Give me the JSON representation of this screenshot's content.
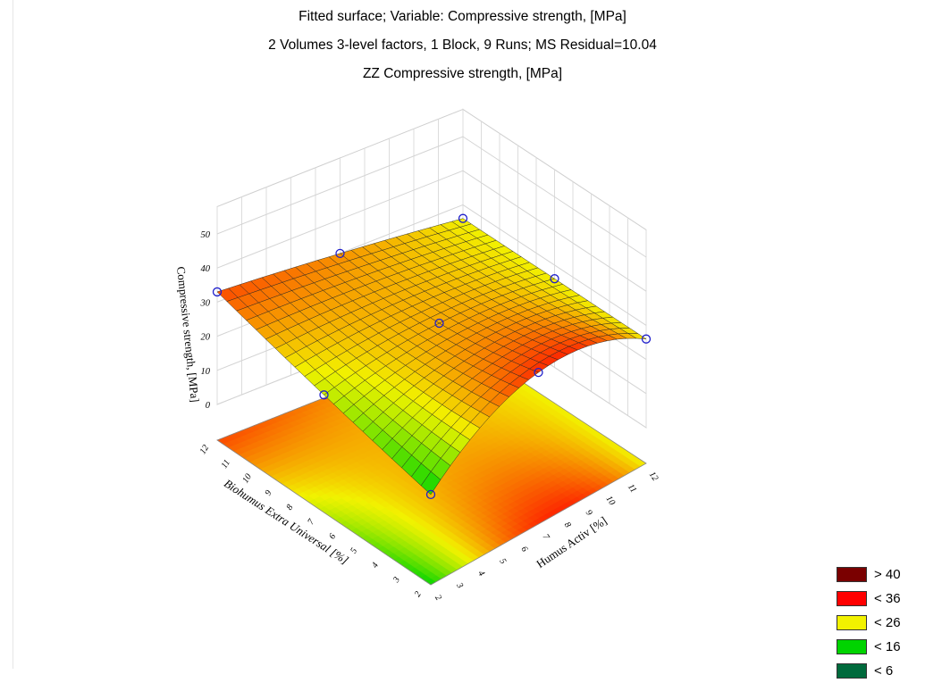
{
  "chart_data": {
    "type": "surface3d",
    "title_lines": [
      "Fitted surface; Variable: Compressive strength, [MPa]",
      "2 Volumes 3-level factors, 1 Block, 9 Runs; MS Residual=10.04",
      "ZZ Compressive strength, [MPa]"
    ],
    "zlabel": "Compressive strength, [MPa]",
    "xlabel": "Humus Activ [%]",
    "ylabel": "Biohumus Extra Universal [%]",
    "zticks": [
      "0",
      "10",
      "20",
      "30",
      "40",
      "50"
    ],
    "zlim": [
      0,
      50
    ],
    "xticks": [
      "2",
      "3",
      "4",
      "5",
      "6",
      "7",
      "8",
      "9",
      "10",
      "11",
      "12"
    ],
    "yticks": [
      "2",
      "3",
      "4",
      "5",
      "6",
      "7",
      "8",
      "9",
      "10",
      "11",
      "12"
    ],
    "xlim": [
      2,
      12
    ],
    "ylim": [
      2,
      12
    ],
    "observed_points": [
      {
        "x": 2,
        "y": 12,
        "z": 33
      },
      {
        "x": 2,
        "y": 7,
        "z": 24
      },
      {
        "x": 2,
        "y": 2,
        "z": 16
      },
      {
        "x": 7,
        "y": 12,
        "z": 30
      },
      {
        "x": 7,
        "y": 7,
        "z": 29
      },
      {
        "x": 7,
        "y": 2,
        "z": 34
      },
      {
        "x": 12,
        "y": 12,
        "z": 26
      },
      {
        "x": 12,
        "y": 7,
        "z": 26
      },
      {
        "x": 12,
        "y": 2,
        "z": 26
      }
    ],
    "legend": [
      {
        "label": "> 40",
        "color": "#7a0000"
      },
      {
        "label": "< 36",
        "color": "#ff0000"
      },
      {
        "label": "< 26",
        "color": "#f2f200"
      },
      {
        "label": "< 16",
        "color": "#00d400"
      },
      {
        "label": "< 6",
        "color": "#006a3c"
      }
    ],
    "grid": true
  }
}
